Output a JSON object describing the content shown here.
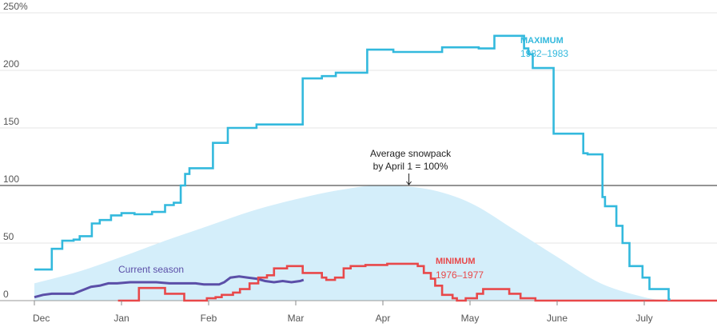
{
  "chart_data": {
    "type": "line",
    "y_unit_suffix": "%",
    "ylim": [
      0,
      250
    ],
    "y_ticks": [
      {
        "value": 0,
        "label": "0"
      },
      {
        "value": 50,
        "label": "50"
      },
      {
        "value": 100,
        "label": "100"
      },
      {
        "value": 150,
        "label": "150"
      },
      {
        "value": 200,
        "label": "200"
      },
      {
        "value": 250,
        "label": "250%"
      }
    ],
    "x_ticks": [
      {
        "value": 0,
        "label": "Dec"
      },
      {
        "value": 1,
        "label": "Jan"
      },
      {
        "value": 2,
        "label": "Feb"
      },
      {
        "value": 3,
        "label": "Mar"
      },
      {
        "value": 4,
        "label": "Apr"
      },
      {
        "value": 5,
        "label": "May"
      },
      {
        "value": 6,
        "label": "June"
      },
      {
        "value": 7,
        "label": "July"
      }
    ],
    "xlim": [
      0,
      8
    ],
    "grid": "horizontal",
    "reference_line": {
      "value": 100
    },
    "annotation": {
      "lines": [
        "Average snowpack",
        "by April 1 = 100%"
      ],
      "x": 3.95
    },
    "average": {
      "x": [
        0,
        0.5,
        1,
        1.5,
        2,
        2.5,
        3,
        3.5,
        3.95,
        4.5,
        5,
        5.5,
        6,
        6.5,
        7,
        7.3
      ],
      "y": [
        15,
        25,
        38,
        52,
        65,
        78,
        88,
        96,
        100,
        97,
        85,
        62,
        38,
        15,
        3,
        0
      ],
      "color": "#d4eefa"
    },
    "series": [
      {
        "name": "MAXIMUM",
        "years": "1982–1983",
        "color": "#33b9dd",
        "x": [
          0,
          0.2,
          0.2,
          0.32,
          0.32,
          0.45,
          0.45,
          0.52,
          0.52,
          0.66,
          0.66,
          0.75,
          0.75,
          0.88,
          0.88,
          1.0,
          1.0,
          1.15,
          1.15,
          1.35,
          1.35,
          1.5,
          1.5,
          1.6,
          1.6,
          1.68,
          1.68,
          1.73,
          1.73,
          1.78,
          1.78,
          2.05,
          2.05,
          2.22,
          2.22,
          2.37,
          2.37,
          2.55,
          2.55,
          2.77,
          2.77,
          3.08,
          3.08,
          3.3,
          3.3,
          3.46,
          3.46,
          3.82,
          3.82,
          4.12,
          4.12,
          4.55,
          4.55,
          4.68,
          4.68,
          4.85,
          4.85,
          5.1,
          5.1,
          5.28,
          5.28,
          5.35,
          5.35,
          5.62,
          5.62,
          5.67,
          5.67,
          5.72,
          5.72,
          5.9,
          5.9,
          5.96,
          5.96,
          6.3,
          6.3,
          6.35,
          6.35,
          6.52,
          6.52,
          6.55,
          6.55,
          6.6,
          6.6,
          6.68,
          6.68,
          6.75,
          6.75,
          6.83,
          6.83,
          6.98,
          6.98,
          7.06,
          7.06,
          7.18,
          7.18,
          7.28,
          7.28,
          7.3
        ],
        "y": [
          27,
          27,
          45,
          45,
          52,
          52,
          53,
          53,
          56,
          56,
          67,
          67,
          70,
          70,
          74,
          74,
          76,
          76,
          75,
          75,
          77,
          77,
          83,
          83,
          85,
          85,
          100,
          100,
          110,
          110,
          115,
          115,
          137,
          137,
          150,
          150,
          150,
          150,
          153,
          153,
          153,
          153,
          193,
          193,
          195,
          195,
          198,
          198,
          218,
          218,
          216,
          216,
          216,
          216,
          220,
          220,
          220,
          220,
          219,
          219,
          230,
          230,
          230,
          230,
          219,
          219,
          214,
          214,
          202,
          202,
          202,
          202,
          145,
          145,
          128,
          128,
          127,
          127,
          90,
          90,
          82,
          82,
          82,
          82,
          65,
          65,
          50,
          50,
          30,
          30,
          20,
          20,
          10,
          10,
          10,
          10,
          1,
          1
        ]
      },
      {
        "name": "MINIMUM",
        "years": "1976–1977",
        "color": "#e8484a",
        "x": [
          0.96,
          1.2,
          1.2,
          1.28,
          1.28,
          1.5,
          1.5,
          1.72,
          1.72,
          1.82,
          1.82,
          1.98,
          1.98,
          2.08,
          2.08,
          2.15,
          2.15,
          2.28,
          2.28,
          2.36,
          2.36,
          2.47,
          2.47,
          2.57,
          2.57,
          2.67,
          2.67,
          2.75,
          2.75,
          2.9,
          2.9,
          3.0,
          3.0,
          3.08,
          3.08,
          3.17,
          3.17,
          3.3,
          3.3,
          3.35,
          3.35,
          3.45,
          3.45,
          3.55,
          3.55,
          3.63,
          3.63,
          3.8,
          3.8,
          4.05,
          4.05,
          4.4,
          4.4,
          4.47,
          4.47,
          4.55,
          4.55,
          4.6,
          4.6,
          4.68,
          4.68,
          4.8,
          4.8,
          4.85,
          4.85,
          4.95,
          4.95,
          5.08,
          5.08,
          5.15,
          5.15,
          5.3,
          5.3,
          5.45,
          5.45,
          5.58,
          5.58,
          5.75,
          5.75,
          5.95,
          5.95,
          8.0
        ],
        "y": [
          0,
          0,
          11,
          11,
          11,
          11,
          6,
          6,
          0,
          0,
          0,
          0,
          2,
          2,
          3,
          3,
          5,
          5,
          7,
          7,
          10,
          10,
          15,
          15,
          20,
          20,
          22,
          22,
          28,
          28,
          30,
          30,
          30,
          30,
          24,
          24,
          24,
          24,
          20,
          20,
          18,
          18,
          20,
          20,
          28,
          28,
          30,
          30,
          31,
          31,
          32,
          32,
          30,
          30,
          24,
          24,
          19,
          19,
          13,
          13,
          5,
          5,
          2,
          2,
          0,
          0,
          2,
          2,
          6,
          6,
          10,
          10,
          10,
          10,
          6,
          6,
          2,
          2,
          0,
          0,
          0,
          0
        ]
      },
      {
        "name": "Current season",
        "color": "#5b4fa8",
        "x": [
          0,
          0.1,
          0.2,
          0.3,
          0.4,
          0.45,
          0.55,
          0.65,
          0.75,
          0.85,
          0.95,
          1.1,
          1.25,
          1.4,
          1.55,
          1.7,
          1.85,
          1.95,
          2.05,
          2.12,
          2.18,
          2.25,
          2.35,
          2.45,
          2.55,
          2.65,
          2.75,
          2.85,
          2.95,
          3.05,
          3.09
        ],
        "y": [
          3,
          5,
          6,
          6,
          6,
          6,
          9,
          12,
          13,
          15,
          15,
          16,
          16,
          16,
          15,
          15,
          15,
          14,
          14,
          14,
          16,
          20,
          21,
          20,
          19,
          17,
          16,
          17,
          16,
          17,
          18
        ]
      }
    ]
  }
}
